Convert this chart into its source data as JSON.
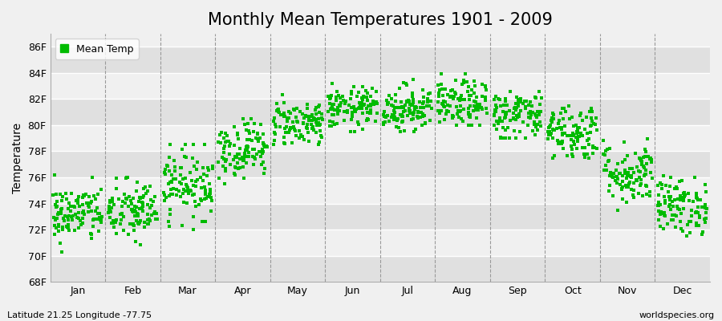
{
  "title": "Monthly Mean Temperatures 1901 - 2009",
  "ylabel": "Temperature",
  "ylim": [
    68,
    87
  ],
  "yticks": [
    68,
    70,
    72,
    74,
    76,
    78,
    80,
    82,
    84,
    86
  ],
  "ytick_labels": [
    "68F",
    "70F",
    "72F",
    "74F",
    "76F",
    "78F",
    "80F",
    "82F",
    "84F",
    "86F"
  ],
  "months": [
    "Jan",
    "Feb",
    "Mar",
    "Apr",
    "May",
    "Jun",
    "Jul",
    "Aug",
    "Sep",
    "Oct",
    "Nov",
    "Dec"
  ],
  "monthly_means": [
    73.2,
    73.4,
    75.5,
    78.2,
    80.2,
    81.3,
    81.3,
    81.6,
    80.8,
    79.5,
    76.3,
    73.8
  ],
  "monthly_stds": [
    1.1,
    1.2,
    1.3,
    1.1,
    0.9,
    0.8,
    0.9,
    0.9,
    1.0,
    1.1,
    1.2,
    1.1
  ],
  "monthly_mins": [
    70.0,
    69.5,
    72.0,
    75.5,
    78.5,
    79.5,
    79.5,
    80.0,
    79.0,
    77.5,
    73.5,
    71.5
  ],
  "monthly_maxs": [
    76.5,
    76.5,
    78.5,
    80.5,
    82.5,
    83.5,
    84.5,
    85.0,
    83.5,
    82.5,
    79.5,
    77.5
  ],
  "n_years": 109,
  "dot_color": "#00bb00",
  "dot_size": 9,
  "bg_color": "#f0f0f0",
  "stripe_light": "#f0f0f0",
  "stripe_dark": "#e0e0e0",
  "vline_color": "#999999",
  "hline_color": "#ffffff",
  "legend_label": "Mean Temp",
  "footer_left": "Latitude 21.25 Longitude -77.75",
  "footer_right": "worldspecies.org",
  "title_fontsize": 15,
  "axis_label_fontsize": 10,
  "tick_fontsize": 9,
  "footer_fontsize": 8
}
